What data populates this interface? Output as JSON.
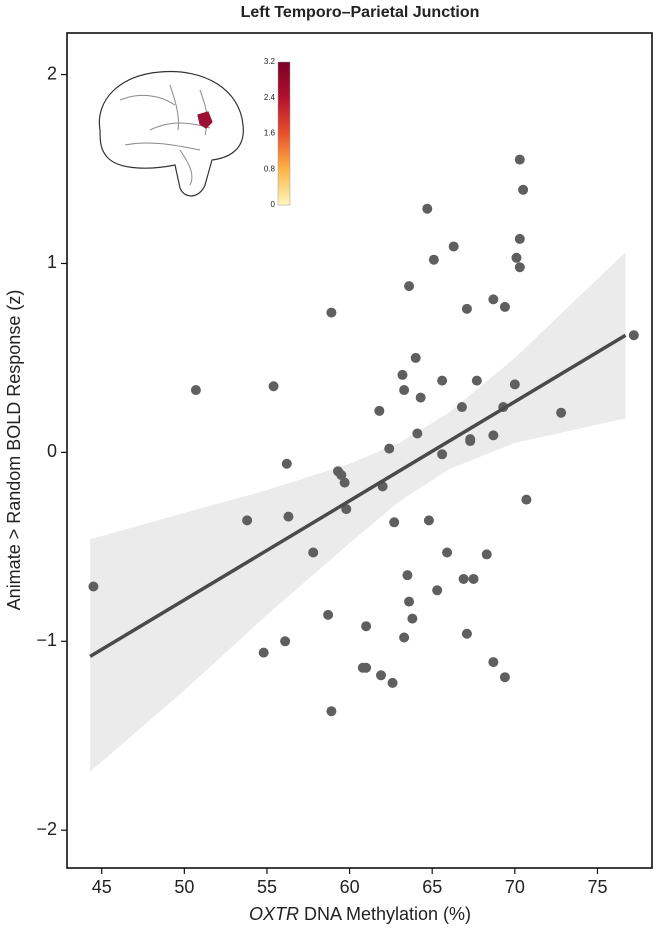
{
  "chart_data": {
    "type": "scatter",
    "title": "Left Temporo–Parietal Junction",
    "x_label_italic": "OXTR",
    "x_label": " DNA Methylation (%)",
    "y_label": "Animate > Random BOLD Response (z)",
    "xlim": [
      42.9,
      78.3
    ],
    "ylim": [
      -2.2,
      2.22
    ],
    "xticks": [
      45,
      50,
      55,
      60,
      65,
      70,
      75
    ],
    "yticks": [
      {
        "value": -2,
        "label": "−2"
      },
      {
        "value": -1,
        "label": "−1"
      },
      0,
      1,
      2
    ],
    "grid": false,
    "color": "#5f5f5f",
    "x": [
      44.5,
      50.7,
      53.8,
      54.8,
      55.4,
      56.1,
      56.2,
      56.3,
      57.8,
      58.7,
      58.9,
      58.9,
      59.3,
      59.5,
      59.7,
      59.8,
      60.8,
      61.0,
      61.0,
      61.8,
      61.9,
      62.0,
      62.4,
      62.6,
      62.7,
      63.2,
      63.3,
      63.3,
      63.5,
      63.6,
      63.6,
      63.8,
      64.0,
      64.1,
      64.3,
      64.7,
      64.8,
      65.1,
      65.3,
      65.6,
      65.6,
      65.9,
      66.3,
      66.8,
      66.9,
      67.1,
      67.1,
      67.3,
      67.3,
      67.5,
      67.7,
      68.3,
      68.7,
      68.7,
      68.7,
      69.3,
      69.4,
      69.4,
      70.0,
      70.1,
      70.3,
      70.3,
      70.3,
      70.5,
      70.7,
      72.8,
      77.2
    ],
    "values": [
      -0.71,
      0.33,
      -0.36,
      -1.06,
      0.35,
      -1.0,
      -0.06,
      -0.34,
      -0.53,
      -0.86,
      -1.37,
      0.74,
      -0.1,
      -0.12,
      -0.16,
      -0.3,
      -1.14,
      -1.14,
      -0.92,
      0.22,
      -1.18,
      -0.18,
      0.02,
      -1.22,
      -0.37,
      0.41,
      0.33,
      -0.98,
      -0.65,
      0.88,
      -0.79,
      -0.88,
      0.5,
      0.1,
      0.29,
      1.29,
      -0.36,
      1.02,
      -0.73,
      -0.01,
      0.38,
      -0.53,
      1.09,
      0.24,
      -0.67,
      0.76,
      -0.96,
      0.06,
      0.07,
      -0.67,
      0.38,
      -0.54,
      0.81,
      0.09,
      -1.11,
      0.24,
      0.77,
      -1.19,
      0.36,
      1.03,
      1.55,
      0.98,
      1.13,
      1.39,
      -0.25,
      0.21,
      0.62
    ],
    "fit": {
      "x": [
        44.3,
        76.7
      ],
      "y": [
        -1.08,
        0.62
      ],
      "color": "#4a4a4a"
    },
    "ci": {
      "x": [
        44.3,
        50,
        55,
        60,
        63,
        66,
        70,
        76.7
      ],
      "upper": [
        -0.46,
        -0.32,
        -0.2,
        -0.06,
        0.05,
        0.21,
        0.5,
        1.06
      ],
      "lower": [
        -1.69,
        -1.26,
        -0.86,
        -0.48,
        -0.26,
        -0.09,
        0.05,
        0.18
      ],
      "color": "#ebebeb"
    },
    "colorbar": {
      "lim": [
        0,
        3.2
      ],
      "ticks": [
        0,
        0.8,
        1.6,
        2.4,
        3.2
      ],
      "colors": [
        "#fff7bc",
        "#fdb446",
        "#e8502b",
        "#b3112e",
        "#7a0026"
      ]
    }
  }
}
